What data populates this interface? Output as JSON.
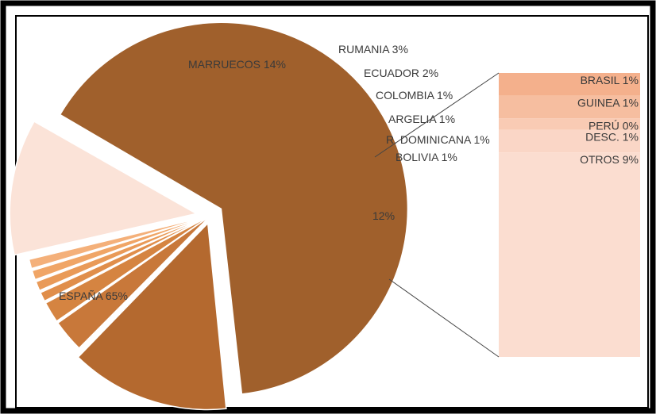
{
  "chart_data": {
    "type": "pie",
    "subtype": "pie-of-bar",
    "slices": [
      {
        "label": "ESPAÑA 65%",
        "name": "ESPAÑA",
        "value": 65,
        "color": "#a0602c"
      },
      {
        "label": "MARRUECOS 14%",
        "name": "MARRUECOS",
        "value": 14,
        "color": "#b4692f"
      },
      {
        "label": "RUMANIA 3%",
        "name": "RUMANIA",
        "value": 3,
        "color": "#c8783a"
      },
      {
        "label": "ECUADOR 2%",
        "name": "ECUADOR",
        "value": 2,
        "color": "#d58441"
      },
      {
        "label": "COLOMBIA 1%",
        "name": "COLOMBIA",
        "value": 1,
        "color": "#e08e4b"
      },
      {
        "label": "ARGELIA 1%",
        "name": "ARGELIA",
        "value": 1,
        "color": "#e99a58"
      },
      {
        "label": "R. DOMINICANA 1%",
        "name": "R. DOMINICANA",
        "value": 1,
        "color": "#f0a566"
      },
      {
        "label": "BOLIVIA 1%",
        "name": "BOLIVIA",
        "value": 1,
        "color": "#f4b07a"
      },
      {
        "label": "12%",
        "name": "",
        "value": 12,
        "color": "#fbe3d8"
      }
    ],
    "breakdown": [
      {
        "label": "BRASIL 1%",
        "name": "BRASIL",
        "value": 1,
        "color": "#f4b08c"
      },
      {
        "label": "GUINEA 1%",
        "name": "GUINEA",
        "value": 1,
        "color": "#f6bea0"
      },
      {
        "label": "PERÚ 0%",
        "name": "PERÚ",
        "value": 0.5,
        "color": "#f9cbb4"
      },
      {
        "label": "DESC. 1%",
        "name": "DESC.",
        "value": 1,
        "color": "#fad6c6"
      },
      {
        "label": "OTROS 9%",
        "name": "OTROS",
        "value": 9,
        "color": "#fbddd0"
      }
    ],
    "legend": "none"
  }
}
